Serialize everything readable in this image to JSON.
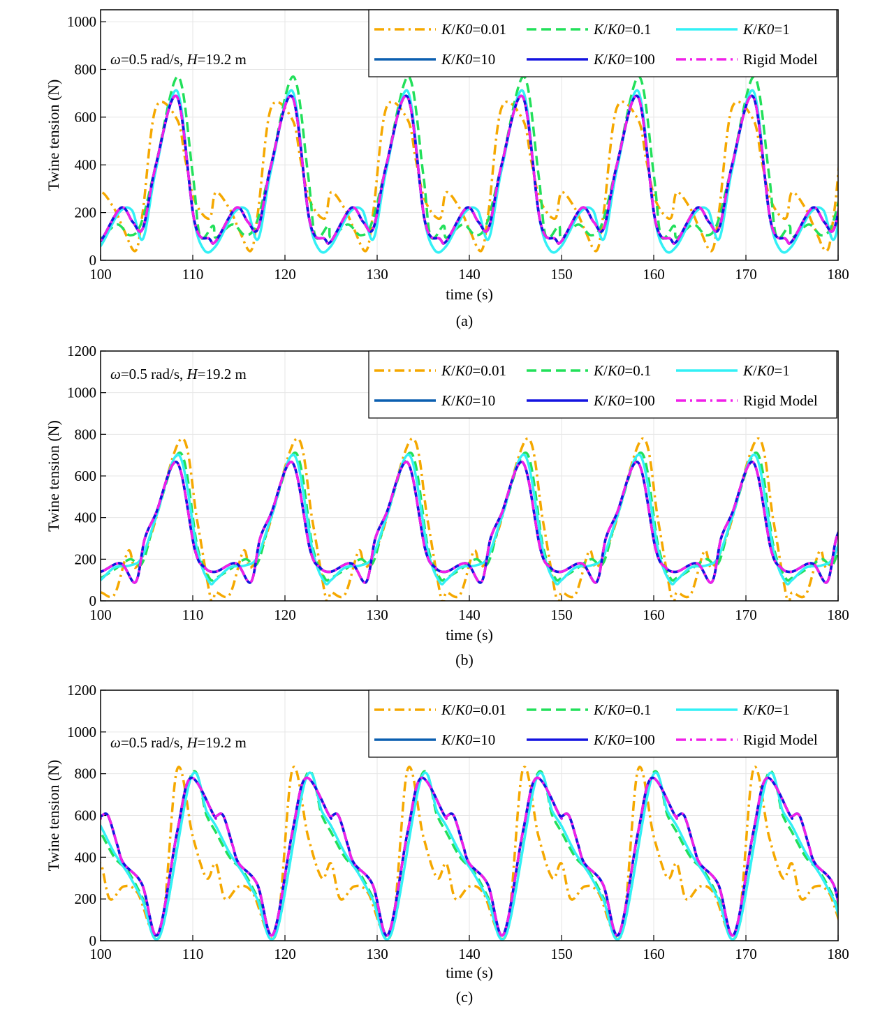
{
  "figure": {
    "panels": [
      {
        "panel_label": "(a)",
        "annotation": {
          "omega_sym": "ω",
          "omega_rest": "=0.5 rad/s, ",
          "H_sym": "H",
          "H_rest": "=19.2 m"
        },
        "xlabel": "time (s)",
        "ylabel": "Twine tension (N)",
        "xticks": [
          "100",
          "110",
          "120",
          "130",
          "140",
          "150",
          "160",
          "170",
          "180"
        ],
        "yticks": [
          "0",
          "200",
          "400",
          "600",
          "800",
          "1000"
        ]
      },
      {
        "panel_label": "(b)",
        "annotation": {
          "omega_sym": "ω",
          "omega_rest": "=0.5 rad/s, ",
          "H_sym": "H",
          "H_rest": "=19.2 m"
        },
        "xlabel": "time (s)",
        "ylabel": "Twine tension (N)",
        "xticks": [
          "100",
          "110",
          "120",
          "130",
          "140",
          "150",
          "160",
          "170",
          "180"
        ],
        "yticks": [
          "0",
          "200",
          "400",
          "600",
          "800",
          "1000",
          "1200"
        ]
      },
      {
        "panel_label": "(c)",
        "annotation": {
          "omega_sym": "ω",
          "omega_rest": "=0.5 rad/s, ",
          "H_sym": "H",
          "H_rest": "=19.2 m"
        },
        "xlabel": "time (s)",
        "ylabel": "Twine tension (N)",
        "xticks": [
          "100",
          "110",
          "120",
          "130",
          "140",
          "150",
          "160",
          "170",
          "180"
        ],
        "yticks": [
          "0",
          "200",
          "400",
          "600",
          "800",
          "1000",
          "1200"
        ]
      }
    ],
    "legend": [
      {
        "k": "K",
        "slash": "/",
        "k0": "K0",
        "rest": "=0.01"
      },
      {
        "k": "K",
        "slash": "/",
        "k0": "K0",
        "rest": "=0.1"
      },
      {
        "k": "K",
        "slash": "/",
        "k0": "K0",
        "rest": "=1"
      },
      {
        "k": "K",
        "slash": "/",
        "k0": "K0",
        "rest": "=10"
      },
      {
        "k": "K",
        "slash": "/",
        "k0": "K0",
        "rest": "=100"
      },
      {
        "k": "",
        "slash": "",
        "k0": "",
        "rest": "Rigid Model"
      }
    ]
  },
  "chart_data": [
    {
      "type": "line",
      "panel": "(a)",
      "xlabel": "time (s)",
      "ylabel": "Twine tension (N)",
      "xlim": [
        100,
        180
      ],
      "ylim": [
        0,
        1050
      ],
      "grid": true,
      "legend_position": "top-right",
      "period": 12.5,
      "series": [
        {
          "name": "K/K0=0.01",
          "color": "#F5A800",
          "dash": "dashdot",
          "cycle_t": [
            0,
            1.5,
            2.5,
            3.8,
            4.6,
            6.0,
            8.3,
            9.2,
            10.2,
            11.8,
            12.5
          ],
          "cycle_y": [
            285,
            215,
            130,
            40,
            210,
            640,
            590,
            420,
            250,
            175,
            285
          ]
        },
        {
          "name": "K/K0=0.1",
          "color": "#22E05A",
          "dash": "dash",
          "cycle_t": [
            0,
            1.8,
            3.2,
            4.4,
            6.0,
            8.4,
            10.0,
            10.8,
            12.2,
            12.5
          ],
          "cycle_y": [
            95,
            150,
            105,
            155,
            400,
            770,
            360,
            100,
            145,
            95
          ]
        },
        {
          "name": "K/K0=1",
          "color": "#33F0F5",
          "dash": "solid",
          "cycle_t": [
            0,
            2.0,
            3.4,
            4.6,
            6.0,
            8.3,
            10.0,
            11.2,
            12.5
          ],
          "cycle_y": [
            60,
            200,
            210,
            90,
            380,
            710,
            200,
            45,
            60
          ]
        },
        {
          "name": "K/K0=10",
          "color": "#0B5FB0",
          "dash": "solid",
          "cycle_t": [
            0,
            2.2,
            3.5,
            4.6,
            6.0,
            8.3,
            10.2,
            11.8,
            12.5
          ],
          "cycle_y": [
            80,
            220,
            160,
            135,
            400,
            685,
            160,
            90,
            80
          ]
        },
        {
          "name": "K/K0=100",
          "color": "#1414E0",
          "dash": "solid",
          "cycle_t": [
            0,
            2.2,
            3.5,
            4.6,
            6.0,
            8.3,
            10.2,
            11.8,
            12.5
          ],
          "cycle_y": [
            80,
            220,
            160,
            135,
            400,
            685,
            160,
            90,
            80
          ]
        },
        {
          "name": "Rigid Model",
          "color": "#F020E8",
          "dash": "dashdot",
          "cycle_t": [
            0,
            2.2,
            3.5,
            4.6,
            6.0,
            8.3,
            10.2,
            11.8,
            12.5
          ],
          "cycle_y": [
            80,
            220,
            160,
            135,
            400,
            685,
            160,
            90,
            80
          ]
        }
      ]
    },
    {
      "type": "line",
      "panel": "(b)",
      "xlabel": "time (s)",
      "ylabel": "Twine tension (N)",
      "xlim": [
        100,
        180
      ],
      "ylim": [
        0,
        1200
      ],
      "grid": true,
      "legend_position": "top-right",
      "period": 12.5,
      "series": [
        {
          "name": "K/K0=0.01",
          "color": "#F5A800",
          "dash": "dashdot",
          "cycle_t": [
            0,
            1.5,
            3.0,
            3.8,
            5.5,
            8.8,
            10.5,
            12.0,
            12.5
          ],
          "cycle_y": [
            40,
            30,
            240,
            160,
            320,
            780,
            380,
            0,
            40
          ]
        },
        {
          "name": "K/K0=0.1",
          "color": "#22E05A",
          "dash": "dash",
          "cycle_t": [
            0,
            1.5,
            3.2,
            4.5,
            6.0,
            8.7,
            10.5,
            11.8,
            12.5
          ],
          "cycle_y": [
            110,
            150,
            200,
            180,
            400,
            710,
            260,
            110,
            110
          ]
        },
        {
          "name": "K/K0=1",
          "color": "#33F0F5",
          "dash": "solid",
          "cycle_t": [
            0,
            1.5,
            3.2,
            4.5,
            6.0,
            8.5,
            10.5,
            11.8,
            12.5
          ],
          "cycle_y": [
            100,
            160,
            170,
            210,
            400,
            700,
            240,
            90,
            100
          ]
        },
        {
          "name": "K/K0=10",
          "color": "#0B5FB0",
          "dash": "solid",
          "cycle_t": [
            0,
            2.2,
            3.8,
            4.8,
            6.0,
            8.3,
            10.2,
            11.3,
            12.5
          ],
          "cycle_y": [
            140,
            180,
            90,
            300,
            420,
            665,
            250,
            160,
            140
          ]
        },
        {
          "name": "K/K0=100",
          "color": "#1414E0",
          "dash": "solid",
          "cycle_t": [
            0,
            2.2,
            3.8,
            4.8,
            6.0,
            8.3,
            10.2,
            11.3,
            12.5
          ],
          "cycle_y": [
            140,
            180,
            90,
            300,
            420,
            665,
            250,
            160,
            140
          ]
        },
        {
          "name": "Rigid Model",
          "color": "#F020E8",
          "dash": "dashdot",
          "cycle_t": [
            0,
            2.2,
            3.8,
            4.8,
            6.0,
            8.3,
            10.2,
            11.3,
            12.5
          ],
          "cycle_y": [
            140,
            180,
            90,
            300,
            420,
            665,
            250,
            160,
            140
          ]
        }
      ]
    },
    {
      "type": "line",
      "panel": "(c)",
      "xlabel": "time (s)",
      "ylabel": "Twine tension (N)",
      "xlim": [
        100,
        180
      ],
      "ylim": [
        0,
        1200
      ],
      "grid": true,
      "legend_position": "top-right",
      "period": 12.5,
      "series": [
        {
          "name": "K/K0=0.01",
          "color": "#F5A800",
          "dash": "dashdot",
          "cycle_t": [
            0,
            1.0,
            2.5,
            4.0,
            6.5,
            8.3,
            10.0,
            11.5,
            12.5
          ],
          "cycle_y": [
            370,
            200,
            260,
            230,
            30,
            820,
            500,
            300,
            370
          ]
        },
        {
          "name": "K/K0=0.1",
          "color": "#22E05A",
          "dash": "dash",
          "cycle_t": [
            0,
            1.5,
            3.0,
            4.5,
            6.5,
            9.8,
            11.5,
            12.5
          ],
          "cycle_y": [
            520,
            400,
            330,
            210,
            30,
            790,
            600,
            520
          ]
        },
        {
          "name": "K/K0=1",
          "color": "#33F0F5",
          "dash": "solid",
          "cycle_t": [
            0,
            1.5,
            3.0,
            4.5,
            6.5,
            9.8,
            11.5,
            12.5
          ],
          "cycle_y": [
            550,
            420,
            320,
            200,
            30,
            780,
            620,
            550
          ]
        },
        {
          "name": "K/K0=10",
          "color": "#0B5FB0",
          "dash": "solid",
          "cycle_t": [
            0,
            0.8,
            1.8,
            2.5,
            4.5,
            6.2,
            8.3,
            9.8,
            12.3,
            12.5
          ],
          "cycle_y": [
            595,
            600,
            460,
            370,
            270,
            30,
            520,
            780,
            600,
            595
          ]
        },
        {
          "name": "K/K0=100",
          "color": "#1414E0",
          "dash": "solid",
          "cycle_t": [
            0,
            0.8,
            1.8,
            2.5,
            4.5,
            6.2,
            8.3,
            9.8,
            12.3,
            12.5
          ],
          "cycle_y": [
            595,
            600,
            460,
            370,
            270,
            30,
            520,
            780,
            600,
            595
          ]
        },
        {
          "name": "Rigid Model",
          "color": "#F020E8",
          "dash": "dashdot",
          "cycle_t": [
            0,
            0.8,
            1.8,
            2.5,
            4.5,
            6.2,
            8.3,
            9.8,
            12.3,
            12.5
          ],
          "cycle_y": [
            595,
            600,
            460,
            370,
            270,
            30,
            520,
            780,
            600,
            595
          ]
        }
      ]
    }
  ]
}
